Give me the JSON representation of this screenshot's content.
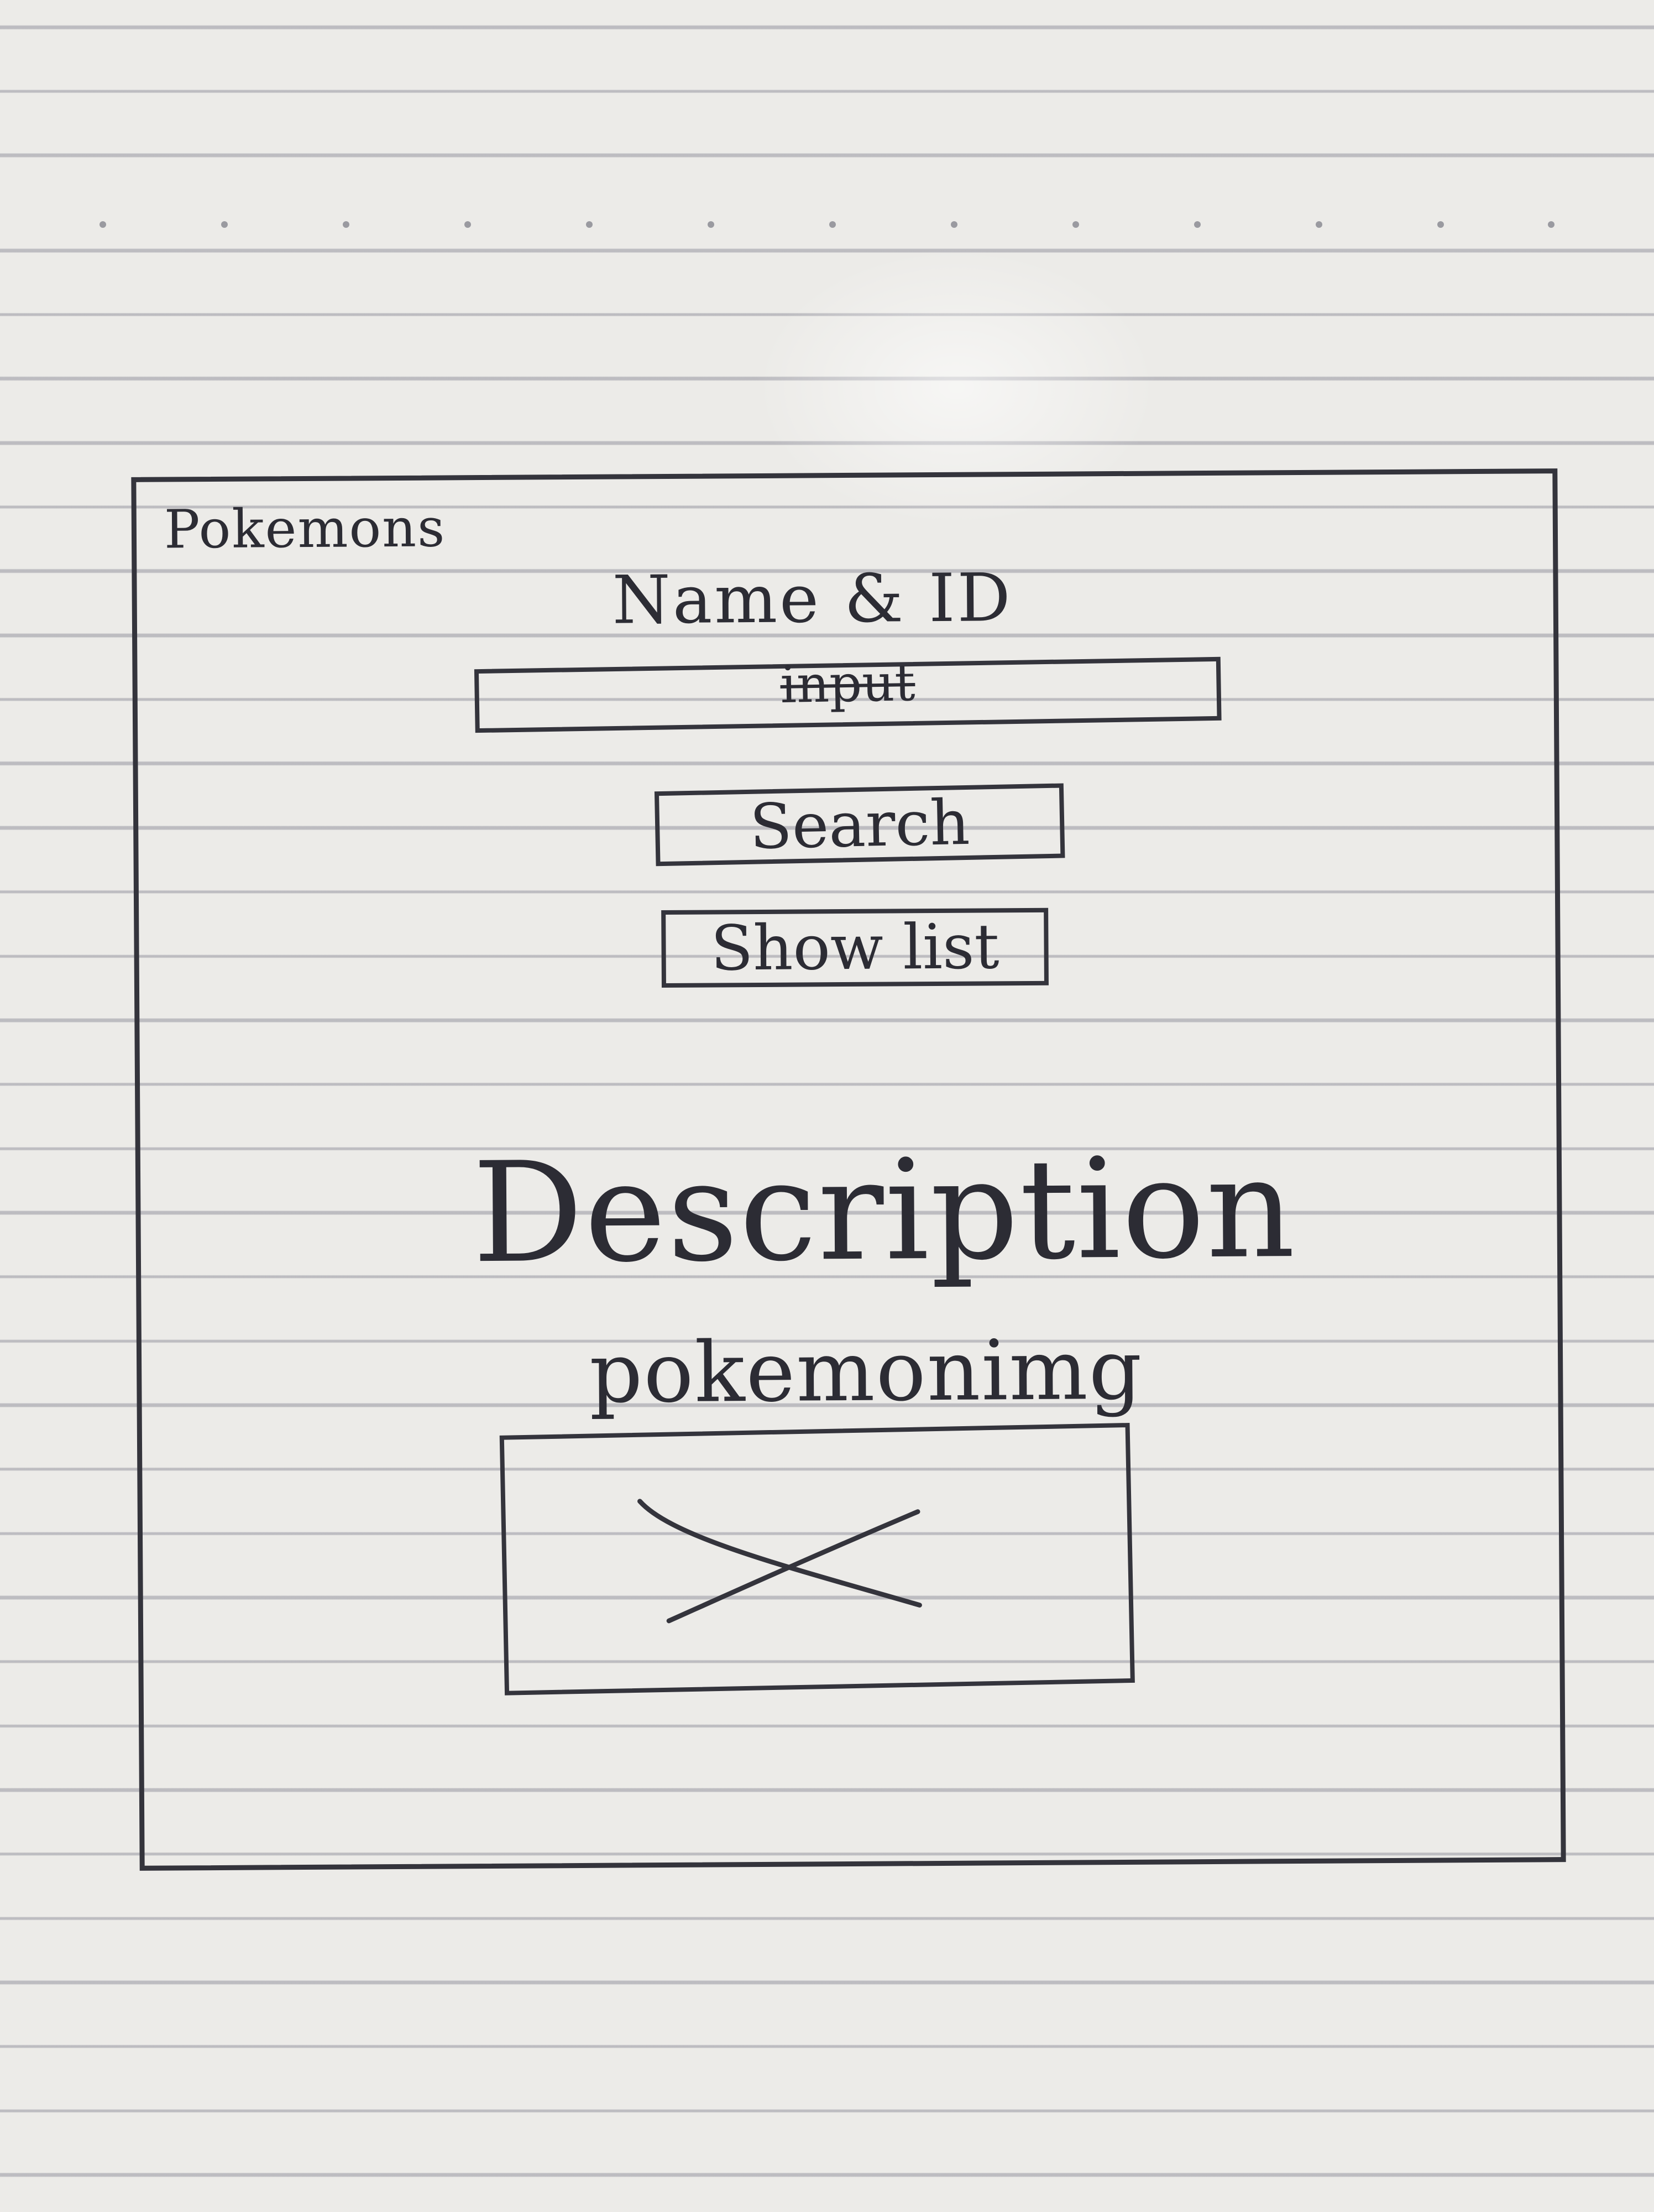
{
  "window": {
    "title": "Pokemons"
  },
  "search": {
    "label": "Name & ID",
    "input_value": "input"
  },
  "buttons": {
    "search": "Search",
    "show_list": "Show list"
  },
  "result": {
    "description": "Description",
    "image_label": "pokemonimg"
  },
  "colors": {
    "ink": "#2c2c34",
    "paper": "#ecebe8",
    "rule": "#96969f"
  },
  "icons": {
    "image_placeholder": "x-cross-placeholder-icon"
  }
}
